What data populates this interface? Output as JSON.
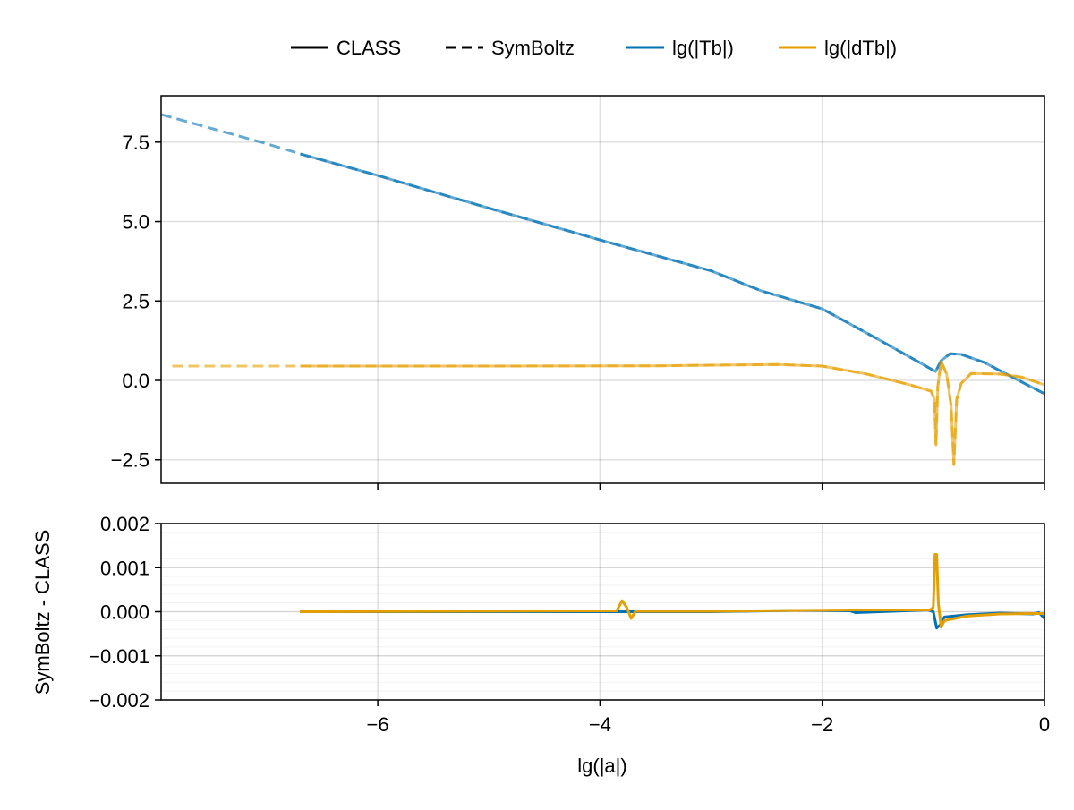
{
  "chart_data": [
    {
      "type": "line",
      "panel": "top",
      "xlim": [
        -7.95,
        0
      ],
      "ylim": [
        -3.24,
        8.96
      ],
      "x_ticks": [
        -6,
        -4,
        -2,
        0
      ],
      "y_ticks": [
        -2.5,
        0.0,
        2.5,
        5.0,
        7.5
      ],
      "y_tick_labels": [
        "−2.5",
        "0.0",
        "2.5",
        "5.0",
        "7.5"
      ],
      "grid": true,
      "legend": {
        "placement": "top",
        "entries": [
          {
            "label": "CLASS",
            "style": "solid",
            "color": "#000000"
          },
          {
            "label": "SymBoltz",
            "style": "dashed",
            "color": "#000000"
          },
          {
            "label": "lg(|Tb|)",
            "style": "solid",
            "color": "#0072b2"
          },
          {
            "label": "lg(|dTb|)",
            "style": "solid",
            "color": "#e69f00"
          }
        ]
      },
      "series": [
        {
          "quantity": "lg(|Tb|)",
          "source": "CLASS",
          "color": "#0072b2",
          "style": "solid",
          "x": [
            -6.7,
            -6,
            -5,
            -4,
            -3,
            -2.55,
            -2,
            -1.5,
            -0.98,
            -0.93,
            -0.85,
            -0.75,
            -0.54,
            -0.3,
            0
          ],
          "y": [
            7.13,
            6.45,
            5.42,
            4.42,
            3.45,
            2.82,
            2.25,
            1.3,
            0.28,
            0.62,
            0.84,
            0.82,
            0.56,
            0.12,
            -0.42
          ]
        },
        {
          "quantity": "lg(|Tb|)",
          "source": "SymBoltz",
          "color": "#0072b2",
          "style": "dashed",
          "x": [
            -7.95,
            -7,
            -6.7,
            -6,
            -5,
            -4,
            -3,
            -2.55,
            -2,
            -1.5,
            -0.98,
            -0.93,
            -0.85,
            -0.75,
            -0.54,
            -0.3,
            0
          ],
          "y": [
            8.37,
            7.45,
            7.13,
            6.45,
            5.42,
            4.42,
            3.45,
            2.82,
            2.25,
            1.3,
            0.28,
            0.62,
            0.84,
            0.82,
            0.56,
            0.12,
            -0.42
          ]
        },
        {
          "quantity": "lg(|dTb|)",
          "source": "CLASS",
          "color": "#e69f00",
          "style": "solid",
          "x": [
            -6.7,
            -5,
            -3.5,
            -3,
            -2.4,
            -2,
            -1.6,
            -1.2,
            -1.02,
            -0.99,
            -0.976,
            -0.96,
            -0.93,
            -0.88,
            -0.84,
            -0.815,
            -0.79,
            -0.75,
            -0.66,
            -0.4,
            -0.2,
            0
          ],
          "y": [
            0.45,
            0.45,
            0.46,
            0.48,
            0.5,
            0.45,
            0.2,
            -0.15,
            -0.34,
            -0.6,
            -2.03,
            -0.2,
            0.6,
            0.2,
            -0.8,
            -2.65,
            -0.6,
            -0.1,
            0.22,
            0.2,
            0.1,
            -0.14
          ]
        },
        {
          "quantity": "lg(|dTb|)",
          "source": "SymBoltz",
          "color": "#e69f00",
          "style": "dashed",
          "x": [
            -7.85,
            -6.7,
            -5,
            -3.5,
            -3,
            -2.4,
            -2,
            -1.6,
            -1.2,
            -1.02,
            -0.99,
            -0.976,
            -0.96,
            -0.93,
            -0.88,
            -0.84,
            -0.815,
            -0.79,
            -0.75,
            -0.66,
            -0.4,
            -0.2,
            0
          ],
          "y": [
            0.45,
            0.45,
            0.45,
            0.46,
            0.48,
            0.5,
            0.45,
            0.2,
            -0.15,
            -0.34,
            -0.6,
            -2.03,
            -0.2,
            0.6,
            0.2,
            -0.8,
            -2.65,
            -0.6,
            -0.1,
            0.22,
            0.2,
            0.1,
            -0.14
          ]
        }
      ]
    },
    {
      "type": "line",
      "panel": "bottom",
      "xlim": [
        -7.95,
        0
      ],
      "ylim": [
        -0.002,
        0.002
      ],
      "x_ticks": [
        -6,
        -4,
        -2,
        0
      ],
      "x_tick_labels": [
        "−6",
        "−4",
        "−2",
        "0"
      ],
      "y_ticks": [
        -0.002,
        -0.001,
        0.0,
        0.001,
        0.002
      ],
      "y_tick_labels": [
        "−0.002",
        "−0.001",
        "0.000",
        "0.001",
        "0.002"
      ],
      "xlabel": "lg(|a|)",
      "ylabel": "SymBoltz - CLASS",
      "grid": true,
      "minor_grid": true,
      "series": [
        {
          "quantity": "lg(|Tb|)",
          "color": "#0072b2",
          "x": [
            -6.7,
            -4,
            -3,
            -2.2,
            -1.75,
            -1.7,
            -1.05,
            -1.0,
            -0.97,
            -0.94,
            -0.9,
            -0.7,
            -0.4,
            -0.1,
            -0.05,
            0
          ],
          "y": [
            0,
            0,
            0,
            3e-05,
            2e-05,
            -2e-05,
            4e-05,
            0.0,
            -0.00037,
            -0.0003,
            -0.00012,
            -7e-05,
            -3e-05,
            -5e-05,
            -2e-05,
            -0.00015
          ]
        },
        {
          "quantity": "lg(|dTb|)",
          "color": "#e69f00",
          "x": [
            -6.7,
            -3.85,
            -3.8,
            -3.76,
            -3.72,
            -3.68,
            -3.0,
            -2.2,
            -1.7,
            -1.03,
            -1.0,
            -0.985,
            -0.97,
            -0.955,
            -0.93,
            -0.9,
            -0.7,
            -0.4,
            -0.1,
            0
          ],
          "y": [
            0,
            2e-05,
            0.00025,
            0.0001,
            -0.00015,
            1e-05,
            1e-05,
            3e-05,
            4e-05,
            4e-05,
            0.0001,
            0.0013,
            0.0013,
            0.0002,
            -0.00035,
            -0.0002,
            -0.0001,
            -5e-05,
            -4e-05,
            -4e-05
          ]
        }
      ]
    }
  ]
}
